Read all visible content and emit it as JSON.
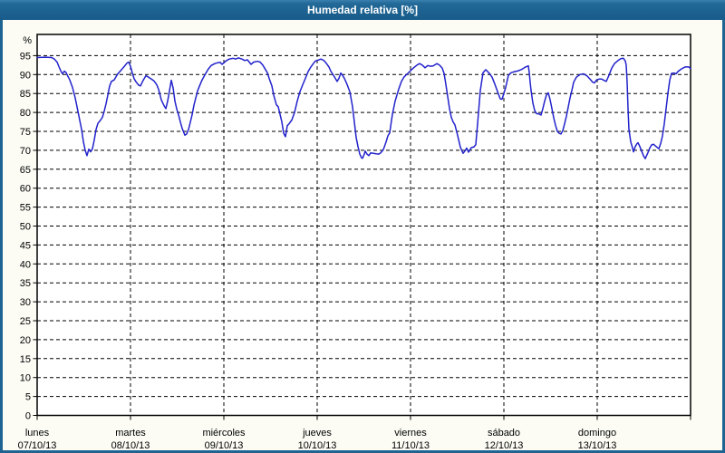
{
  "window": {
    "title": "Humedad relativa [%]",
    "colors": {
      "title_bar": "#1e6493",
      "border": "#1e6493",
      "content_bg": "#fcfcf5",
      "plot_bg": "#ffffff"
    }
  },
  "chart_data": {
    "type": "line",
    "title": "Humedad relativa [%]",
    "ylabel": "%",
    "ylim": [
      0,
      100.5
    ],
    "yticks": [
      0,
      5,
      10,
      15,
      20,
      25,
      30,
      35,
      40,
      45,
      50,
      55,
      60,
      65,
      70,
      75,
      80,
      85,
      90,
      95
    ],
    "grid": {
      "horizontal": "dashed black at every 5 %",
      "vertical": "dashed black at each day boundary"
    },
    "legend_position": "none",
    "line_color": "#2222cc",
    "x_axis": {
      "unit": "days",
      "range_days": [
        0,
        7
      ],
      "tick_labels": [
        {
          "day": "lunes",
          "date": "07/10/13"
        },
        {
          "day": "martes",
          "date": "08/10/13"
        },
        {
          "day": "miércoles",
          "date": "09/10/13"
        },
        {
          "day": "jueves",
          "date": "10/10/13"
        },
        {
          "day": "viernes",
          "date": "11/10/13"
        },
        {
          "day": "sábado",
          "date": "12/10/13"
        },
        {
          "day": "domingo",
          "date": "13/10/13"
        }
      ]
    },
    "series": [
      {
        "name": "Humedad relativa [%]",
        "points": [
          [
            0,
            94.5
          ],
          [
            0.087,
            94.6
          ],
          [
            0.155,
            94.5
          ],
          [
            0.184,
            94.1
          ],
          [
            0.214,
            93.3
          ],
          [
            0.233,
            92.1
          ],
          [
            0.252,
            91
          ],
          [
            0.272,
            90.2
          ],
          [
            0.291,
            90.9
          ],
          [
            0.311,
            90.5
          ],
          [
            0.33,
            89.5
          ],
          [
            0.35,
            88.6
          ],
          [
            0.379,
            86.6
          ],
          [
            0.408,
            83.8
          ],
          [
            0.437,
            80.3
          ],
          [
            0.456,
            77.9
          ],
          [
            0.476,
            75.5
          ],
          [
            0.495,
            72.3
          ],
          [
            0.515,
            70
          ],
          [
            0.534,
            68.6
          ],
          [
            0.553,
            70.3
          ],
          [
            0.573,
            69.6
          ],
          [
            0.592,
            70.4
          ],
          [
            0.612,
            72.7
          ],
          [
            0.631,
            75.5
          ],
          [
            0.65,
            77.1
          ],
          [
            0.68,
            78
          ],
          [
            0.699,
            78.7
          ],
          [
            0.718,
            80.3
          ],
          [
            0.738,
            82.3
          ],
          [
            0.757,
            84.6
          ],
          [
            0.777,
            87
          ],
          [
            0.796,
            88.2
          ],
          [
            0.825,
            88.6
          ],
          [
            0.845,
            89.4
          ],
          [
            0.864,
            90.2
          ],
          [
            0.893,
            91
          ],
          [
            0.932,
            92.1
          ],
          [
            0.961,
            93
          ],
          [
            0.981,
            93.3
          ],
          [
            1,
            92.2
          ],
          [
            1.019,
            90.4
          ],
          [
            1.039,
            88.9
          ],
          [
            1.058,
            88.1
          ],
          [
            1.087,
            87.2
          ],
          [
            1.107,
            87
          ],
          [
            1.136,
            88.5
          ],
          [
            1.165,
            89.7
          ],
          [
            1.194,
            89.3
          ],
          [
            1.223,
            88.8
          ],
          [
            1.252,
            88.3
          ],
          [
            1.282,
            87.3
          ],
          [
            1.301,
            86.1
          ],
          [
            1.33,
            83.3
          ],
          [
            1.359,
            81.8
          ],
          [
            1.379,
            81
          ],
          [
            1.398,
            83
          ],
          [
            1.417,
            85.7
          ],
          [
            1.437,
            88.5
          ],
          [
            1.456,
            86.5
          ],
          [
            1.476,
            83
          ],
          [
            1.495,
            80.9
          ],
          [
            1.515,
            79.4
          ],
          [
            1.534,
            77.5
          ],
          [
            1.553,
            75.8
          ],
          [
            1.583,
            74
          ],
          [
            1.602,
            74.3
          ],
          [
            1.621,
            75.5
          ],
          [
            1.641,
            77.4
          ],
          [
            1.66,
            79.4
          ],
          [
            1.68,
            81.9
          ],
          [
            1.699,
            83.8
          ],
          [
            1.718,
            85.7
          ],
          [
            1.738,
            86.9
          ],
          [
            1.767,
            88.6
          ],
          [
            1.806,
            90.3
          ],
          [
            1.835,
            91.5
          ],
          [
            1.864,
            92.4
          ],
          [
            1.903,
            92.9
          ],
          [
            1.932,
            93.1
          ],
          [
            1.961,
            93.2
          ],
          [
            1.981,
            92.7
          ],
          [
            2.01,
            93.3
          ],
          [
            2.029,
            93.7
          ],
          [
            2.058,
            94.1
          ],
          [
            2.097,
            94.3
          ],
          [
            2.126,
            94.1
          ],
          [
            2.155,
            94.4
          ],
          [
            2.194,
            94.1
          ],
          [
            2.223,
            93.7
          ],
          [
            2.252,
            93.9
          ],
          [
            2.291,
            92.7
          ],
          [
            2.32,
            93.3
          ],
          [
            2.359,
            93.5
          ],
          [
            2.388,
            93.3
          ],
          [
            2.417,
            92.5
          ],
          [
            2.437,
            91.7
          ],
          [
            2.466,
            90.5
          ],
          [
            2.485,
            89
          ],
          [
            2.515,
            87
          ],
          [
            2.534,
            84.6
          ],
          [
            2.563,
            82
          ],
          [
            2.583,
            81.5
          ],
          [
            2.602,
            79.5
          ],
          [
            2.621,
            77.5
          ],
          [
            2.641,
            74.5
          ],
          [
            2.66,
            73.6
          ],
          [
            2.68,
            76.5
          ],
          [
            2.699,
            77
          ],
          [
            2.728,
            78
          ],
          [
            2.757,
            80
          ],
          [
            2.786,
            83
          ],
          [
            2.816,
            85.5
          ],
          [
            2.845,
            87.3
          ],
          [
            2.874,
            89
          ],
          [
            2.903,
            90.8
          ],
          [
            2.932,
            92
          ],
          [
            2.961,
            93
          ],
          [
            2.981,
            93.6
          ],
          [
            3.01,
            93.8
          ],
          [
            3.039,
            94.1
          ],
          [
            3.068,
            93.8
          ],
          [
            3.097,
            93
          ],
          [
            3.126,
            92
          ],
          [
            3.146,
            90.9
          ],
          [
            3.175,
            89.8
          ],
          [
            3.194,
            89
          ],
          [
            3.214,
            88.2
          ],
          [
            3.233,
            89
          ],
          [
            3.252,
            90.4
          ],
          [
            3.272,
            89.8
          ],
          [
            3.291,
            89
          ],
          [
            3.32,
            87.4
          ],
          [
            3.35,
            85.4
          ],
          [
            3.379,
            81.5
          ],
          [
            3.398,
            77.5
          ],
          [
            3.417,
            73.4
          ],
          [
            3.437,
            71
          ],
          [
            3.456,
            69
          ],
          [
            3.476,
            68
          ],
          [
            3.485,
            67.9
          ],
          [
            3.505,
            69
          ],
          [
            3.515,
            69.8
          ],
          [
            3.534,
            69
          ],
          [
            3.553,
            68.6
          ],
          [
            3.573,
            69.3
          ],
          [
            3.602,
            69.2
          ],
          [
            3.631,
            69.1
          ],
          [
            3.66,
            69
          ],
          [
            3.68,
            69.3
          ],
          [
            3.709,
            70.2
          ],
          [
            3.738,
            72.2
          ],
          [
            3.757,
            73.8
          ],
          [
            3.777,
            74.6
          ],
          [
            3.806,
            79.5
          ],
          [
            3.835,
            83
          ],
          [
            3.874,
            86.2
          ],
          [
            3.903,
            88.2
          ],
          [
            3.932,
            89.4
          ],
          [
            3.971,
            90.3
          ],
          [
            3.99,
            90.8
          ],
          [
            4.029,
            91.7
          ],
          [
            4.068,
            92.5
          ],
          [
            4.097,
            92.9
          ],
          [
            4.126,
            92.5
          ],
          [
            4.155,
            91.8
          ],
          [
            4.184,
            92.4
          ],
          [
            4.214,
            92.2
          ],
          [
            4.243,
            92.3
          ],
          [
            4.282,
            92.9
          ],
          [
            4.311,
            92.5
          ],
          [
            4.34,
            91.7
          ],
          [
            4.359,
            90.3
          ],
          [
            4.379,
            87.4
          ],
          [
            4.398,
            84.2
          ],
          [
            4.417,
            81
          ],
          [
            4.437,
            78.7
          ],
          [
            4.456,
            77.5
          ],
          [
            4.476,
            76.7
          ],
          [
            4.505,
            73.9
          ],
          [
            4.534,
            70.8
          ],
          [
            4.563,
            69.2
          ],
          [
            4.583,
            69.8
          ],
          [
            4.602,
            70.6
          ],
          [
            4.621,
            69.5
          ],
          [
            4.65,
            70.7
          ],
          [
            4.68,
            70.9
          ],
          [
            4.699,
            71.5
          ],
          [
            4.718,
            77
          ],
          [
            4.748,
            85.8
          ],
          [
            4.777,
            90.5
          ],
          [
            4.806,
            91.3
          ],
          [
            4.845,
            90.3
          ],
          [
            4.874,
            89.3
          ],
          [
            4.903,
            87.5
          ],
          [
            4.932,
            85.5
          ],
          [
            4.961,
            83.6
          ],
          [
            4.981,
            83.5
          ],
          [
            5.019,
            86.6
          ],
          [
            5.049,
            89.8
          ],
          [
            5.078,
            90.5
          ],
          [
            5.117,
            90.8
          ],
          [
            5.155,
            91
          ],
          [
            5.194,
            91.4
          ],
          [
            5.233,
            92
          ],
          [
            5.262,
            92.3
          ],
          [
            5.272,
            90.5
          ],
          [
            5.282,
            88
          ],
          [
            5.291,
            85.8
          ],
          [
            5.311,
            82.5
          ],
          [
            5.33,
            80.5
          ],
          [
            5.35,
            79.7
          ],
          [
            5.379,
            79.6
          ],
          [
            5.398,
            79.3
          ],
          [
            5.417,
            81
          ],
          [
            5.437,
            83
          ],
          [
            5.456,
            84.6
          ],
          [
            5.476,
            85.2
          ],
          [
            5.495,
            83.4
          ],
          [
            5.515,
            81
          ],
          [
            5.534,
            78.6
          ],
          [
            5.553,
            76.6
          ],
          [
            5.573,
            75
          ],
          [
            5.592,
            74.5
          ],
          [
            5.612,
            74.3
          ],
          [
            5.631,
            75.2
          ],
          [
            5.65,
            77
          ],
          [
            5.67,
            79
          ],
          [
            5.689,
            81.4
          ],
          [
            5.709,
            83.8
          ],
          [
            5.728,
            85.8
          ],
          [
            5.748,
            88
          ],
          [
            5.777,
            89.3
          ],
          [
            5.816,
            90
          ],
          [
            5.854,
            90.2
          ],
          [
            5.893,
            89.6
          ],
          [
            5.922,
            88.8
          ],
          [
            5.951,
            88
          ],
          [
            5.971,
            87.8
          ],
          [
            5.99,
            88.5
          ],
          [
            6.019,
            88.8
          ],
          [
            6.049,
            88.8
          ],
          [
            6.078,
            88.4
          ],
          [
            6.097,
            88.2
          ],
          [
            6.126,
            89.8
          ],
          [
            6.155,
            91.7
          ],
          [
            6.184,
            92.9
          ],
          [
            6.223,
            93.7
          ],
          [
            6.252,
            94.2
          ],
          [
            6.281,
            94.3
          ],
          [
            6.301,
            93.6
          ],
          [
            6.311,
            92.5
          ],
          [
            6.32,
            88
          ],
          [
            6.33,
            81
          ],
          [
            6.34,
            75.5
          ],
          [
            6.359,
            72.2
          ],
          [
            6.379,
            70.6
          ],
          [
            6.388,
            69.6
          ],
          [
            6.408,
            71
          ],
          [
            6.427,
            71.8
          ],
          [
            6.437,
            72
          ],
          [
            6.456,
            71
          ],
          [
            6.476,
            69.8
          ],
          [
            6.495,
            68.6
          ],
          [
            6.515,
            67.8
          ],
          [
            6.544,
            69.4
          ],
          [
            6.563,
            70.6
          ],
          [
            6.583,
            71.4
          ],
          [
            6.602,
            71.6
          ],
          [
            6.631,
            71
          ],
          [
            6.66,
            70.4
          ],
          [
            6.68,
            71.8
          ],
          [
            6.699,
            73.8
          ],
          [
            6.718,
            77
          ],
          [
            6.738,
            81
          ],
          [
            6.757,
            85
          ],
          [
            6.777,
            88.5
          ],
          [
            6.796,
            90.3
          ],
          [
            6.825,
            90.4
          ],
          [
            6.845,
            90.2
          ],
          [
            6.864,
            90.8
          ],
          [
            6.903,
            91.5
          ],
          [
            6.942,
            92
          ],
          [
            6.981,
            92
          ],
          [
            7,
            91.6
          ]
        ]
      }
    ]
  }
}
